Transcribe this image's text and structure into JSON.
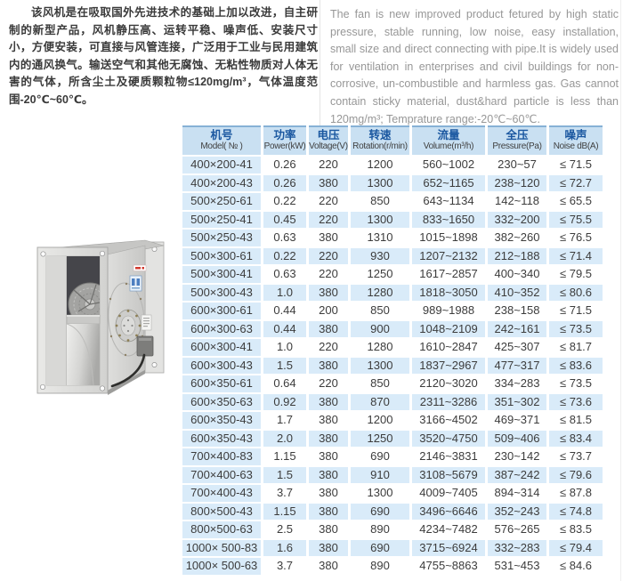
{
  "intro": {
    "chinese": "该风机是在吸取国外先进技术的基础上加以改进，自主研制的新型产品，风机静压高、运转平稳、噪声低、安装尺寸小，方便安装，可直接与风管连接，广泛用于工业与民用建筑内的通风换气。输送空气和其他无腐蚀、无粘性物质对人体无害的气体，所含尘土及硬质颗粒物≤120mg/m³，气体温度范围-20℃~60℃。",
    "english": "The fan is new improved product fetured by high static pressure, stable running, low noise, easy installation, small size and direct connecting with pipe.It is widely used for ventilation in enterprises and civil buildings for non-corrosive, un-combustible and harmless gas. Gas cannot contain sticky material, dust&hard particle is less than 120mg/m³; Temprature range:-20℃~60℃."
  },
  "product_image": {
    "name": "box-type-centrifugal-fan-photo"
  },
  "table": {
    "headers": [
      {
        "zh": "机号",
        "en": "Model( № )"
      },
      {
        "zh": "功率",
        "en": "Power(kW)"
      },
      {
        "zh": "电压",
        "en": "Voltage(V)"
      },
      {
        "zh": "转速",
        "en": "Rotation(r/min)"
      },
      {
        "zh": "流量",
        "en": "Volume(m³/h)"
      },
      {
        "zh": "全压",
        "en": "Pressure(Pa)"
      },
      {
        "zh": "噪声",
        "en": "Noise dB(A)"
      }
    ],
    "rows": [
      [
        "400×200-41",
        "0.26",
        "220",
        "1200",
        "560~1002",
        "230~57",
        "≤ 71.5"
      ],
      [
        "400×200-43",
        "0.26",
        "380",
        "1300",
        "652~1165",
        "238~120",
        "≤ 72.7"
      ],
      [
        "500×250-61",
        "0.22",
        "220",
        "850",
        "643~1134",
        "142~118",
        "≤ 65.5"
      ],
      [
        "500×250-41",
        "0.45",
        "220",
        "1300",
        "833~1650",
        "332~200",
        "≤ 75.5"
      ],
      [
        "500×250-43",
        "0.63",
        "380",
        "1310",
        "1015~1898",
        "382~260",
        "≤ 76.5"
      ],
      [
        "500×300-61",
        "0.22",
        "220",
        "930",
        "1207~2132",
        "212~188",
        "≤ 71.4"
      ],
      [
        "500×300-41",
        "0.63",
        "220",
        "1250",
        "1617~2857",
        "400~340",
        "≤ 79.5"
      ],
      [
        "500×300-43",
        "1.0",
        "380",
        "1280",
        "1818~3050",
        "410~352",
        "≤ 80.6"
      ],
      [
        "600×300-61",
        "0.44",
        "200",
        "850",
        "989~1988",
        "238~158",
        "≤ 71.5"
      ],
      [
        "600×300-63",
        "0.44",
        "380",
        "900",
        "1048~2109",
        "242~161",
        "≤ 73.5"
      ],
      [
        "600×300-41",
        "1.0",
        "220",
        "1280",
        "1610~2847",
        "425~307",
        "≤ 81.7"
      ],
      [
        "600×300-43",
        "1.5",
        "380",
        "1300",
        "1837~2967",
        "477~317",
        "≤ 83.6"
      ],
      [
        "600×350-61",
        "0.64",
        "220",
        "850",
        "2120~3020",
        "334~283",
        "≤ 73.5"
      ],
      [
        "600×350-63",
        "0.92",
        "380",
        "870",
        "2311~3286",
        "351~302",
        "≤ 73.6"
      ],
      [
        "600×350-43",
        "1.7",
        "380",
        "1200",
        "3166~4502",
        "469~371",
        "≤ 81.5"
      ],
      [
        "600×350-43",
        "2.0",
        "380",
        "1250",
        "3520~4750",
        "509~406",
        "≤ 83.4"
      ],
      [
        "700×400-83",
        "1.15",
        "380",
        "690",
        "2146~3831",
        "230~142",
        "≤ 73.7"
      ],
      [
        "700×400-63",
        "1.5",
        "380",
        "910",
        "3108~5679",
        "387~242",
        "≤ 79.6"
      ],
      [
        "700×400-43",
        "3.7",
        "380",
        "1300",
        "4009~7405",
        "894~314",
        "≤ 87.8"
      ],
      [
        "800×500-43",
        "1.15",
        "380",
        "690",
        "3496~6646",
        "352~243",
        "≤ 74.8"
      ],
      [
        "800×500-63",
        "2.5",
        "380",
        "890",
        "4234~7482",
        "576~265",
        "≤ 83.5"
      ],
      [
        "1000× 500-83",
        "1.6",
        "380",
        "690",
        "3715~6924",
        "332~283",
        "≤ 79.4"
      ],
      [
        "1000× 500-63",
        "3.7",
        "380",
        "890",
        "4755~8863",
        "531~453",
        "≤ 84.6"
      ]
    ]
  },
  "colors": {
    "header_text_accent": "#1a57a0",
    "header_bg": "#c9e0f2",
    "header_top_border": "#86b1d6",
    "row_stripe": "#d9ebf9",
    "body_text": "#3c3c3c",
    "english_text": "#979797"
  }
}
